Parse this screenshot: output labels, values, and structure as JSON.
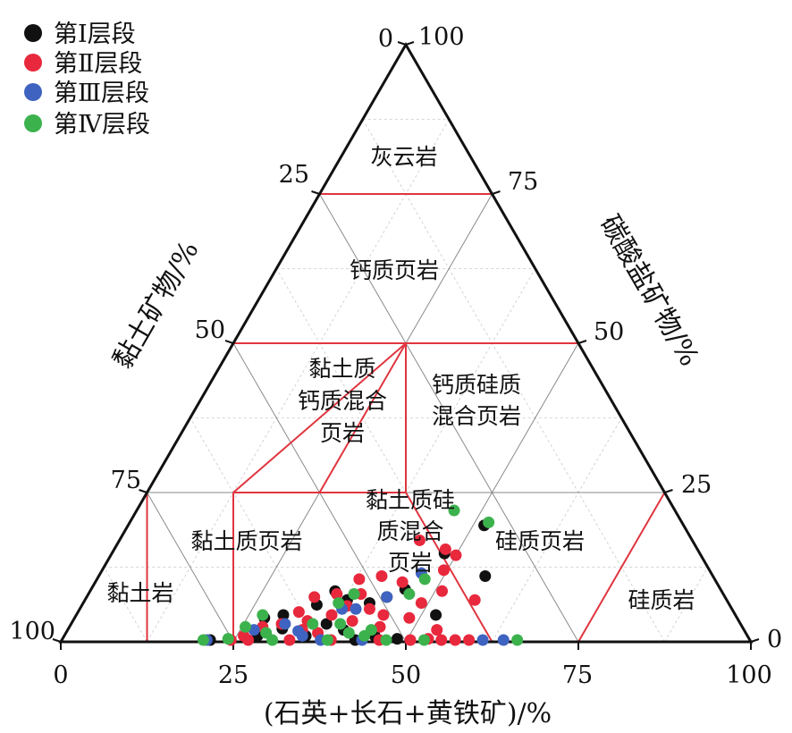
{
  "chart_data": {
    "type": "ternary-scatter",
    "axes": {
      "bottom": {
        "label": "(石英+长石+黄铁矿)/%",
        "ticks": [
          "0",
          "25",
          "50",
          "75",
          "100"
        ]
      },
      "left": {
        "label": "黏土矿物/%",
        "ticks": [
          "0",
          "25",
          "50",
          "75",
          "100"
        ]
      },
      "right": {
        "label": "碳酸盐矿物/%",
        "ticks": [
          "100",
          "75",
          "50",
          "25",
          "0"
        ]
      }
    },
    "grid": true,
    "legend_position": "top-left",
    "legend": [
      {
        "label": "第Ⅰ层段",
        "color": "#111111"
      },
      {
        "label": "第Ⅱ层段",
        "color": "#e8283c"
      },
      {
        "label": "第Ⅲ层段",
        "color": "#3f63c0"
      },
      {
        "label": "第Ⅳ层段",
        "color": "#3cb24d"
      }
    ],
    "regions": {
      "dolomite": "灰云岩",
      "calcareous_shale": "钙质页岩",
      "clay_calc_mixed": [
        "黏土质",
        "钙质混合",
        "页岩"
      ],
      "calc_sil_mixed": [
        "钙质硅质",
        "混合页岩"
      ],
      "clay_sil_mixed": [
        "黏土质硅",
        "质混合",
        "页岩"
      ],
      "clay_shale": "黏土质页岩",
      "siliceous_shale": "硅质页岩",
      "claystone": "黏土岩",
      "siliceous_rock": "硅质岩"
    },
    "series": [
      {
        "name": "第Ⅰ层段",
        "color": "#111111",
        "points": [
          {
            "x": 56.0,
            "y": 11.0
          },
          {
            "x": 51.6,
            "y": 19.5
          },
          {
            "x": 48.2,
            "y": 14.8
          },
          {
            "x": 52.1,
            "y": 4.5
          },
          {
            "x": 45.5,
            "y": 8.8
          },
          {
            "x": 43.5,
            "y": 7.5
          },
          {
            "x": 41.5,
            "y": 6.5
          },
          {
            "x": 38.0,
            "y": 7.0
          },
          {
            "x": 35.5,
            "y": 8.5
          },
          {
            "x": 34.0,
            "y": 6.2
          },
          {
            "x": 30.0,
            "y": 4.5
          },
          {
            "x": 27.5,
            "y": 4.0
          },
          {
            "x": 31.0,
            "y": 2.2
          },
          {
            "x": 28.0,
            "y": 1.0
          },
          {
            "x": 35.0,
            "y": 1.0
          },
          {
            "x": 40.0,
            "y": 2.0
          },
          {
            "x": 45.0,
            "y": 1.0
          },
          {
            "x": 48.5,
            "y": 0.5
          },
          {
            "x": 21.5,
            "y": 0.3
          },
          {
            "x": 42.5,
            "y": 0.3
          },
          {
            "x": 37.0,
            "y": 3.0
          }
        ]
      },
      {
        "name": "第Ⅱ层段",
        "color": "#e8283c",
        "points": [
          {
            "x": 43.5,
            "y": 17.0
          },
          {
            "x": 48.0,
            "y": 15.5
          },
          {
            "x": 50.0,
            "y": 14.5
          },
          {
            "x": 49.5,
            "y": 12.0
          },
          {
            "x": 51.0,
            "y": 8.5
          },
          {
            "x": 49.0,
            "y": 6.5
          },
          {
            "x": 56.5,
            "y": 7.0
          },
          {
            "x": 48.5,
            "y": 4.0
          },
          {
            "x": 44.5,
            "y": 10.0
          },
          {
            "x": 41.0,
            "y": 11.0
          },
          {
            "x": 38.0,
            "y": 10.5
          },
          {
            "x": 39.5,
            "y": 8.0
          },
          {
            "x": 36.0,
            "y": 8.0
          },
          {
            "x": 42.0,
            "y": 5.5
          },
          {
            "x": 40.5,
            "y": 3.5
          },
          {
            "x": 37.0,
            "y": 4.5
          },
          {
            "x": 34.0,
            "y": 3.5
          },
          {
            "x": 32.0,
            "y": 5.0
          },
          {
            "x": 30.5,
            "y": 3.0
          },
          {
            "x": 28.0,
            "y": 2.5
          },
          {
            "x": 26.0,
            "y": 1.0
          },
          {
            "x": 24.5,
            "y": 0.3
          },
          {
            "x": 27.0,
            "y": 0.3
          },
          {
            "x": 33.0,
            "y": 0.3
          },
          {
            "x": 39.0,
            "y": 0.3
          },
          {
            "x": 46.0,
            "y": 0.3
          },
          {
            "x": 50.5,
            "y": 0.3
          },
          {
            "x": 53.0,
            "y": 0.5
          },
          {
            "x": 55.0,
            "y": 0.3
          },
          {
            "x": 57.0,
            "y": 0.3
          },
          {
            "x": 59.0,
            "y": 0.3
          },
          {
            "x": 53.5,
            "y": 2.0
          },
          {
            "x": 45.0,
            "y": 2.5
          },
          {
            "x": 36.5,
            "y": 1.5
          },
          {
            "x": 34.0,
            "y": 2.0
          },
          {
            "x": 44.5,
            "y": 4.5
          },
          {
            "x": 38.5,
            "y": 6.0
          },
          {
            "x": 33.0,
            "y": 7.5
          }
        ]
      },
      {
        "name": "第Ⅲ层段",
        "color": "#3f63c0",
        "points": [
          {
            "x": 46.5,
            "y": 11.5
          },
          {
            "x": 43.5,
            "y": 7.5
          },
          {
            "x": 40.0,
            "y": 5.5
          },
          {
            "x": 38.0,
            "y": 5.5
          },
          {
            "x": 31.0,
            "y": 3.0
          },
          {
            "x": 27.0,
            "y": 2.0
          },
          {
            "x": 34.5,
            "y": 1.0
          },
          {
            "x": 37.5,
            "y": 0.3
          },
          {
            "x": 43.5,
            "y": 0.3
          },
          {
            "x": 61.0,
            "y": 0.3
          },
          {
            "x": 64.0,
            "y": 0.3
          },
          {
            "x": 21.0,
            "y": 0.3
          },
          {
            "x": 33.5,
            "y": 1.8
          }
        ]
      },
      {
        "name": "第Ⅳ层段",
        "color": "#3cb24d",
        "points": [
          {
            "x": 46.0,
            "y": 22.0
          },
          {
            "x": 52.0,
            "y": 20.0
          },
          {
            "x": 47.5,
            "y": 10.5
          },
          {
            "x": 46.5,
            "y": 8.0
          },
          {
            "x": 38.5,
            "y": 8.0
          },
          {
            "x": 37.0,
            "y": 6.5
          },
          {
            "x": 39.0,
            "y": 3.0
          },
          {
            "x": 27.0,
            "y": 4.5
          },
          {
            "x": 25.5,
            "y": 2.5
          },
          {
            "x": 29.0,
            "y": 1.5
          },
          {
            "x": 35.0,
            "y": 3.0
          },
          {
            "x": 41.0,
            "y": 1.5
          },
          {
            "x": 44.0,
            "y": 2.0
          },
          {
            "x": 20.5,
            "y": 0.3
          },
          {
            "x": 30.5,
            "y": 0.3
          },
          {
            "x": 38.5,
            "y": 0.3
          },
          {
            "x": 47.0,
            "y": 0.3
          },
          {
            "x": 52.5,
            "y": 0.3
          },
          {
            "x": 66.0,
            "y": 0.3
          },
          {
            "x": 43.5,
            "y": 1.0
          },
          {
            "x": 24.0,
            "y": 0.5
          }
        ]
      }
    ]
  }
}
